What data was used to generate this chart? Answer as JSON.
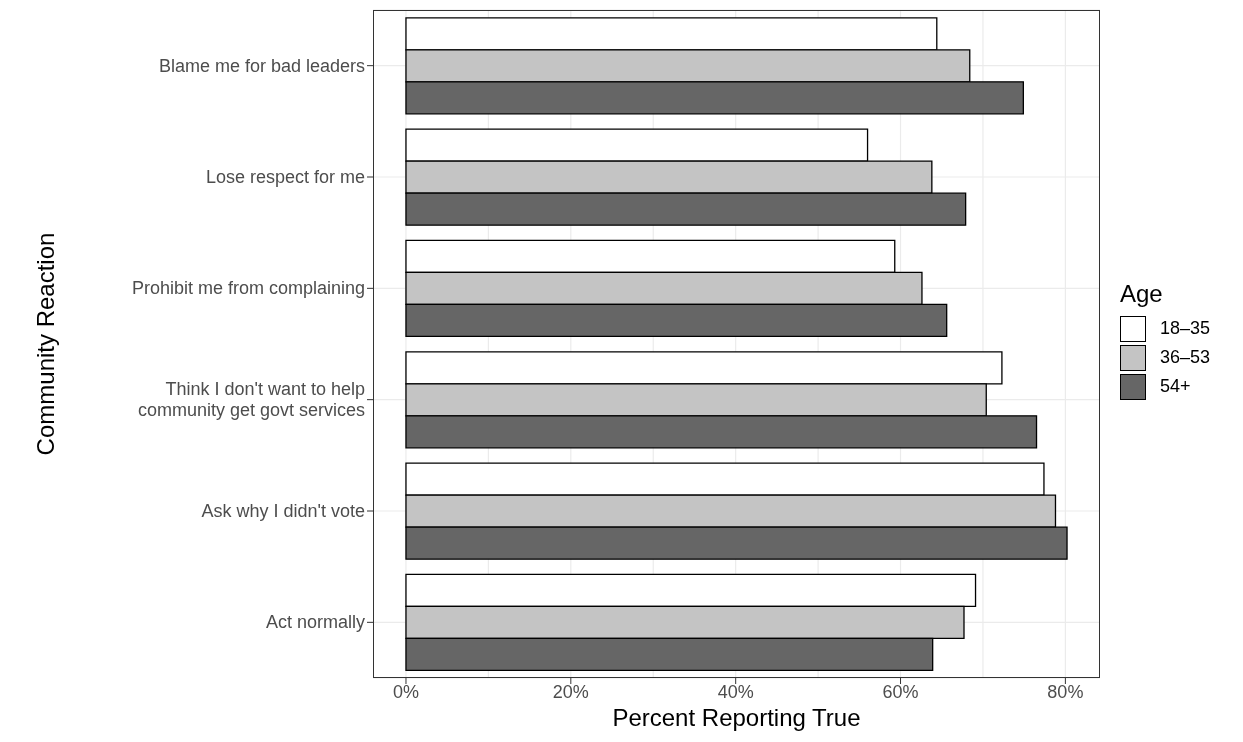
{
  "chart_data": {
    "type": "bar",
    "orientation": "horizontal",
    "xlabel": "Percent Reporting True",
    "ylabel": "Community Reaction",
    "legend_title": "Age",
    "categories": [
      "Blame me for bad leaders",
      "Lose respect for me",
      "Prohibit me from complaining",
      "Think I don't want to help\ncommunity get govt services",
      "Ask why I didn't vote",
      "Act normally"
    ],
    "series": [
      {
        "name": "18–35",
        "color": "#ffffff",
        "values": [
          64.4,
          56.0,
          59.3,
          72.3,
          77.4,
          69.1
        ]
      },
      {
        "name": "36–53",
        "color": "#c4c4c4",
        "values": [
          68.4,
          63.8,
          62.6,
          70.4,
          78.8,
          67.7
        ]
      },
      {
        "name": "54+",
        "color": "#666666",
        "values": [
          74.9,
          67.9,
          65.6,
          76.5,
          80.2,
          63.9
        ]
      }
    ],
    "xlim": [
      -4,
      84.2
    ],
    "xticks": [
      {
        "value": 0,
        "label": "0%"
      },
      {
        "value": 10,
        "label": null
      },
      {
        "value": 20,
        "label": "20%"
      },
      {
        "value": 30,
        "label": null
      },
      {
        "value": 40,
        "label": "40%"
      },
      {
        "value": 50,
        "label": null
      },
      {
        "value": 60,
        "label": "60%"
      },
      {
        "value": 70,
        "label": null
      },
      {
        "value": 80,
        "label": "80%"
      }
    ],
    "grid": true,
    "legend": "right"
  }
}
